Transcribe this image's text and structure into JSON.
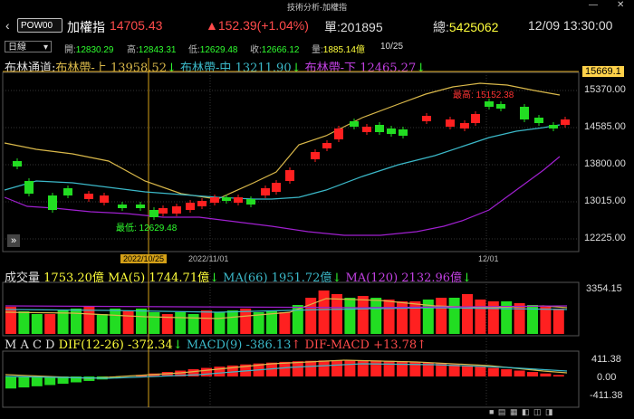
{
  "window": {
    "title": "技術分析-加權指",
    "controls": [
      "—",
      "✕"
    ]
  },
  "header": {
    "back_icon": "chevron-left-icon",
    "symbol": "POW00",
    "name": "加權指",
    "price": "14705.43",
    "change": "▲152.39(+1.04%)",
    "volume_label": "單:",
    "volume": "201895",
    "total_label": "總:",
    "total": "5425062",
    "datetime": "12/09 13:30:00"
  },
  "ohlc_bar": {
    "period": "日線",
    "open_label": "開:",
    "open": "12830.29",
    "high_label": "高:",
    "high": "12843.31",
    "low_label": "低:",
    "low": "12629.48",
    "close_label": "收:",
    "close": "12666.12",
    "amount_label": "量:",
    "amount": "1885.14億",
    "date": "10/25"
  },
  "bollinger": {
    "title": "布林通道:",
    "upper_label": "布林帶-上",
    "upper": "13958.52",
    "mid_label": "布林帶-中",
    "mid": "13211.90",
    "lower_label": "布林帶-下",
    "lower": "12465.27",
    "down_arrow": "↓"
  },
  "price_axis": {
    "current": "15669.1",
    "ticks": [
      "15370.00",
      "14585.00",
      "13800.00",
      "13015.00",
      "12225.00"
    ]
  },
  "annotations": {
    "high": "最高: 15152.38",
    "low": "最低: 12629.48"
  },
  "date_axis": {
    "selected": "2022/10/25",
    "labels": [
      "2022/11/01",
      "12/01"
    ]
  },
  "volume": {
    "title": "成交量",
    "value": "1753.20億",
    "ma5_label": "MA(5)",
    "ma5": "1744.71億",
    "ma66_label": "MA(66)",
    "ma66": "1951.72億",
    "ma120_label": "MA(120)",
    "ma120": "2132.96億",
    "down_arrow": "↓",
    "axis": "3354.15"
  },
  "macd": {
    "title": "M A C D",
    "dif_label": "DIF(12-26)",
    "dif": "-372.34",
    "macd_label": "MACD(9)",
    "macd": "-386.13",
    "osc_label": "DIF-MACD",
    "osc": "+13.78",
    "up_arrow": "↑",
    "down_arrow": "↓",
    "axis": [
      "411.38",
      "0.00",
      "-411.38"
    ]
  },
  "colors": {
    "up": "#ff2020",
    "down": "#22dd22",
    "upper": "#d9b84a",
    "mid": "#3bb8c8",
    "lower": "#a020d0"
  }
}
